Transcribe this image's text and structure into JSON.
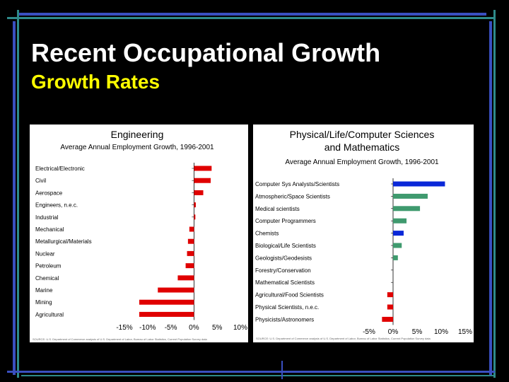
{
  "slide": {
    "title": "Recent Occupational Growth",
    "subtitle": "Growth Rates"
  },
  "colors": {
    "background": "#000000",
    "title": "#ffffff",
    "subtitle": "#ffff00",
    "decor_blue": "#3a4fc0",
    "decor_teal": "#2e8a8a"
  },
  "chart_data": [
    {
      "type": "bar",
      "orientation": "horizontal",
      "title": "Engineering",
      "subtitle": "Average Annual Employment Growth, 1996-2001",
      "categories": [
        "Electrical/Electronic",
        "Civil",
        "Aerospace",
        "Engineers, n.e.c.",
        "Industrial",
        "Mechanical",
        "Metallurgical/Materials",
        "Nuclear",
        "Petroleum",
        "Chemical",
        "Marine",
        "Mining",
        "Agricultural"
      ],
      "values": [
        3.8,
        3.6,
        2.0,
        0.4,
        0.3,
        -1.0,
        -1.3,
        -1.5,
        -1.8,
        -3.5,
        -7.8,
        -11.8,
        -11.8
      ],
      "colors": [
        "#e00000",
        "#e00000",
        "#e00000",
        "#e00000",
        "#e00000",
        "#e00000",
        "#e00000",
        "#e00000",
        "#e00000",
        "#e00000",
        "#e00000",
        "#e00000",
        "#e00000"
      ],
      "xlim": [
        -15,
        10
      ],
      "xticks": [
        "-15%",
        "-10%",
        "-5%",
        "0%",
        "5%",
        "10%"
      ],
      "source": "SOURCE: U.S. Department of Commerce analysis of U.S. Department of Labor, Bureau of Labor Statistics, Current Population Survey data"
    },
    {
      "type": "bar",
      "orientation": "horizontal",
      "title": [
        "Physical/Life/Computer Sciences",
        "and Mathematics"
      ],
      "subtitle": "Average Annual Employment Growth, 1996-2001",
      "categories": [
        "Computer Sys Analysts/Scientists",
        "Atmospheric/Space Scientists",
        "Medical scientists",
        "Computer Programmers",
        "Chemists",
        "Biological/Life Scientists",
        "Geologists/Geodesists",
        "Forestry/Conservation",
        "Mathematical Scientists",
        "Agricultural/Food Scientists",
        "Physical Scientists, n.e.c.",
        "Physicists/Astronomers"
      ],
      "values": [
        10.8,
        7.2,
        5.6,
        2.8,
        2.2,
        1.8,
        1.0,
        0,
        0,
        -1.2,
        -1.2,
        -2.3
      ],
      "colors": [
        "#0a28d8",
        "#3f9a6e",
        "#3f9a6e",
        "#3f9a6e",
        "#0a28d8",
        "#3f9a6e",
        "#3f9a6e",
        "#3f9a6e",
        "#3f9a6e",
        "#e00000",
        "#e00000",
        "#e00000"
      ],
      "xlim": [
        -5,
        15
      ],
      "xticks": [
        "-5%",
        "0%",
        "5%",
        "10%",
        "15%"
      ],
      "source": "SOURCE: U.S. Department of Commerce analysis of U.S. Department of Labor, Bureau of Labor Statistics, Current Population Survey data"
    }
  ]
}
